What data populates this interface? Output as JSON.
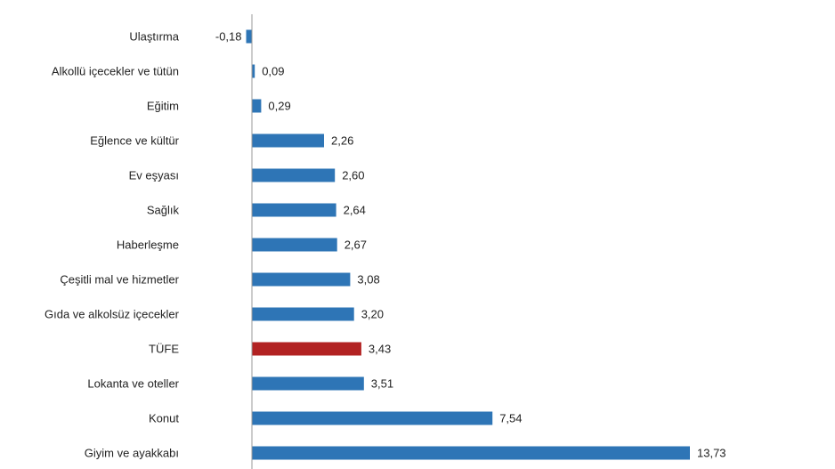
{
  "chart_data": {
    "type": "bar",
    "orientation": "horizontal",
    "title": "",
    "xlabel": "",
    "ylabel": "",
    "xlim": [
      -0.3,
      14.5
    ],
    "grid": false,
    "legend": "none",
    "colors": {
      "default": "#2E75B6",
      "highlight": "#B22222"
    },
    "categories": [
      "Ulaştırma",
      "Alkollü içecekler ve tütün",
      "Eğitim",
      "Eğlence ve kültür",
      "Ev eşyası",
      "Sağlık",
      "Haberleşme",
      "Çeşitli mal ve hizmetler",
      "Gıda ve alkolsüz içecekler",
      "TÜFE",
      "Lokanta ve oteller",
      "Konut",
      "Giyim ve ayakkabı"
    ],
    "values": [
      -0.18,
      0.09,
      0.29,
      2.26,
      2.6,
      2.64,
      2.67,
      3.08,
      3.2,
      3.43,
      3.51,
      7.54,
      13.73
    ],
    "value_labels": [
      "-0,18",
      "0,09",
      "0,29",
      "2,26",
      "2,60",
      "2,64",
      "2,67",
      "3,08",
      "3,20",
      "3,43",
      "3,51",
      "7,54",
      "13,73"
    ],
    "highlight": [
      "TÜFE"
    ]
  }
}
